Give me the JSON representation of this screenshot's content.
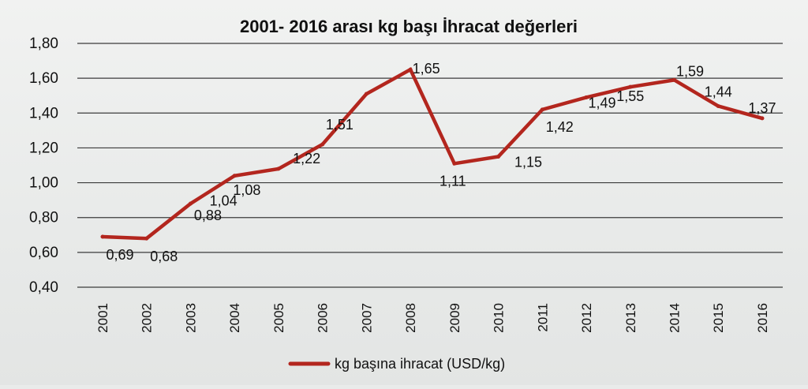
{
  "chart_data": {
    "type": "line",
    "title": "2001- 2016 arası kg başı İhracat değerleri",
    "categories": [
      "2001",
      "2002",
      "2003",
      "2004",
      "2005",
      "2006",
      "2007",
      "2008",
      "2009",
      "2010",
      "2011",
      "2012",
      "2013",
      "2014",
      "2015",
      "2016"
    ],
    "series": [
      {
        "name": "kg başına ihracat (USD/kg)",
        "values": [
          0.69,
          0.68,
          0.88,
          1.04,
          1.08,
          1.22,
          1.51,
          1.65,
          1.11,
          1.15,
          1.42,
          1.49,
          1.55,
          1.59,
          1.44,
          1.37
        ],
        "labels": [
          "0,69",
          "0,68",
          "0,88",
          "1,04",
          "1,08",
          "1,22",
          "1,51",
          "1,65",
          "1,11",
          "1,15",
          "1,42",
          "1,49",
          "1,55",
          "1,59",
          "1,44",
          "1,37"
        ],
        "color": "#b3261e"
      }
    ],
    "yticks": [
      "0,40",
      "0,60",
      "0,80",
      "1,00",
      "1,20",
      "1,40",
      "1,60",
      "1,80"
    ],
    "ylim": [
      0.4,
      1.8
    ],
    "grid": true,
    "legend_position": "bottom"
  }
}
